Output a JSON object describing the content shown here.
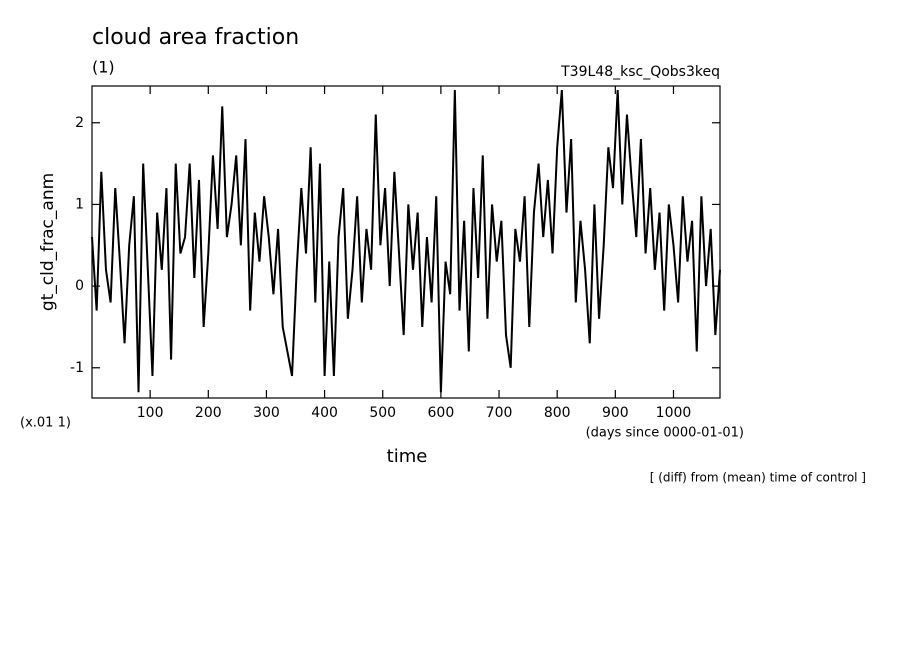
{
  "chart_data": {
    "type": "line",
    "title": "cloud area fraction",
    "subtitle": "(1)",
    "run_label": "T39L48_ksc_Qobs3keq",
    "y_label": "gt_cld_frac_anm",
    "y_unit": "(x.01 1)",
    "x_label": "time",
    "x_unit": "(days since 0000-01-01)",
    "footnote": "[ (diff) from (mean) time of control ]",
    "color": "#000000",
    "xlim": [
      0,
      1080
    ],
    "ylim": [
      -1.37,
      2.45
    ],
    "xticks": [
      100,
      200,
      300,
      400,
      500,
      600,
      700,
      800,
      900,
      1000
    ],
    "yticks": [
      -1,
      0,
      1,
      2
    ],
    "x": [
      0,
      8,
      16,
      24,
      32,
      40,
      48,
      56,
      64,
      72,
      80,
      88,
      96,
      104,
      112,
      120,
      128,
      136,
      144,
      152,
      160,
      168,
      176,
      184,
      192,
      200,
      208,
      216,
      224,
      232,
      240,
      248,
      256,
      264,
      272,
      280,
      288,
      296,
      304,
      312,
      320,
      328,
      336,
      344,
      352,
      360,
      368,
      376,
      384,
      392,
      400,
      408,
      416,
      424,
      432,
      440,
      448,
      456,
      464,
      472,
      480,
      488,
      496,
      504,
      512,
      520,
      528,
      536,
      544,
      552,
      560,
      568,
      576,
      584,
      592,
      600,
      608,
      616,
      624,
      632,
      640,
      648,
      656,
      664,
      672,
      680,
      688,
      696,
      704,
      712,
      720,
      728,
      736,
      744,
      752,
      760,
      768,
      776,
      784,
      792,
      800,
      808,
      816,
      824,
      832,
      840,
      848,
      856,
      864,
      872,
      880,
      888,
      896,
      904,
      912,
      920,
      928,
      936,
      944,
      952,
      960,
      968,
      976,
      984,
      992,
      1000,
      1008,
      1016,
      1024,
      1032,
      1040,
      1048,
      1056,
      1064,
      1072,
      1080
    ],
    "values": [
      0.6,
      -0.3,
      1.4,
      0.2,
      -0.2,
      1.2,
      0.3,
      -0.7,
      0.5,
      1.1,
      -1.3,
      1.5,
      0.2,
      -1.1,
      0.9,
      0.2,
      1.2,
      -0.9,
      1.5,
      0.4,
      0.6,
      1.5,
      0.1,
      1.3,
      -0.5,
      0.4,
      1.6,
      0.7,
      2.2,
      0.6,
      1.0,
      1.6,
      0.5,
      1.8,
      -0.3,
      0.9,
      0.3,
      1.1,
      0.6,
      -0.1,
      0.7,
      -0.5,
      -0.8,
      -1.1,
      0.2,
      1.2,
      0.4,
      1.7,
      -0.2,
      1.5,
      -1.1,
      0.3,
      -1.1,
      0.6,
      1.2,
      -0.4,
      0.2,
      1.1,
      -0.2,
      0.7,
      0.2,
      2.1,
      0.5,
      1.2,
      0.0,
      1.4,
      0.4,
      -0.6,
      1.0,
      0.2,
      0.9,
      -0.5,
      0.6,
      -0.2,
      1.1,
      -1.3,
      0.3,
      -0.1,
      2.4,
      -0.3,
      0.8,
      -0.8,
      1.2,
      0.1,
      1.6,
      -0.4,
      1.0,
      0.3,
      0.8,
      -0.6,
      -1.0,
      0.7,
      0.3,
      1.1,
      -0.5,
      0.9,
      1.5,
      0.6,
      1.3,
      0.4,
      1.7,
      2.4,
      0.9,
      1.8,
      -0.2,
      0.8,
      0.2,
      -0.7,
      1.0,
      -0.4,
      0.5,
      1.7,
      1.2,
      2.4,
      1.0,
      2.1,
      1.3,
      0.6,
      1.8,
      0.4,
      1.2,
      0.2,
      0.9,
      -0.3,
      1.0,
      0.5,
      -0.2,
      1.1,
      0.3,
      0.8,
      -0.8,
      1.1,
      0.0,
      0.7,
      -0.6,
      0.2
    ]
  }
}
